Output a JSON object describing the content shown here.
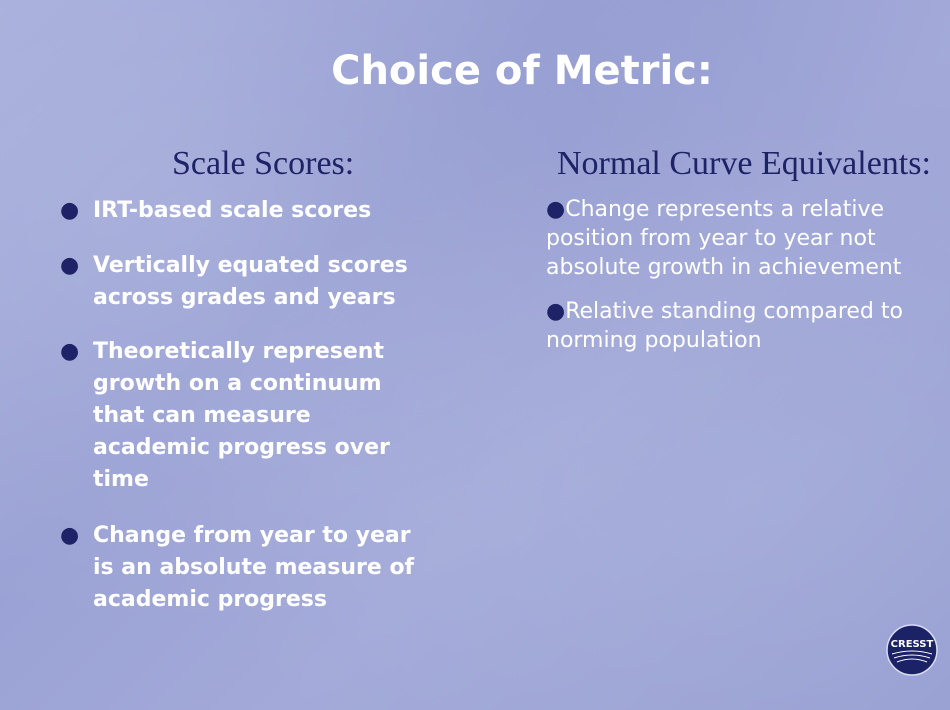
{
  "slide": {
    "title": "Choice of Metric:",
    "left_heading": "Scale Scores:",
    "right_heading": "Normal Curve Equivalents:",
    "left_bullets": [
      [
        "IRT-based scale scores"
      ],
      [
        "Vertically equated scores",
        "across grades and years"
      ],
      [
        "Theoretically represent",
        "growth on a continuum",
        "that can measure",
        "academic progress over",
        "time"
      ],
      [
        "Change from year to year",
        "is an absolute measure of",
        "academic progress"
      ]
    ],
    "right_bullets": [
      [
        "Change represents a relative",
        "position from year to year not",
        "absolute growth in achievement"
      ],
      [
        "Relative standing compared to",
        "norming population"
      ]
    ],
    "logo_text": "CRESST"
  },
  "colors": {
    "accent": "#1e2266",
    "text": "#ffffff"
  }
}
